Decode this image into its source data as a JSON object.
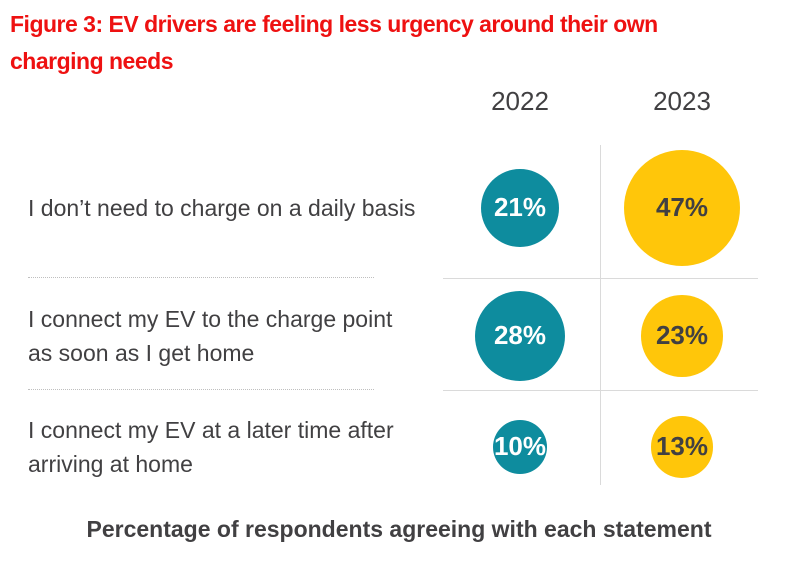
{
  "figure": {
    "title_line1": "Figure 3: EV drivers are feeling less urgency around their own",
    "title_line2": "charging needs",
    "title_full": "Figure 3: EV drivers are feeling less urgency around their own charging needs",
    "caption": "Percentage of respondents agreeing with each statement"
  },
  "columns": [
    {
      "id": "v2022",
      "label": "2022"
    },
    {
      "id": "v2023",
      "label": "2023"
    }
  ],
  "rows": [
    {
      "label_lines": [
        "I don’t need to charge on a daily basis"
      ],
      "v2022": 21,
      "v2022_label": "21%",
      "v2023": 47,
      "v2023_label": "47%"
    },
    {
      "label_lines": [
        "I connect my EV to the charge point",
        "as soon as I get home"
      ],
      "v2022": 28,
      "v2022_label": "28%",
      "v2023": 23,
      "v2023_label": "23%"
    },
    {
      "label_lines": [
        "I connect my EV at a later time after",
        "arriving at home"
      ],
      "v2022": 10,
      "v2022_label": "10%",
      "v2023": 13,
      "v2023_label": "13%"
    }
  ],
  "colors": {
    "title_red": "#EE1111",
    "bubble_2022_teal": "#0E8C9E",
    "bubble_2023_yellow": "#FFC60A",
    "text_dark": "#414042",
    "grid_gray": "#DADADA"
  },
  "chart_data": {
    "type": "scatter",
    "subtype": "proportional-bubble",
    "title": "Figure 3: EV drivers are feeling less urgency around their own charging needs",
    "caption": "Percentage of respondents agreeing with each statement",
    "units": "%",
    "categories": [
      "I don’t need to charge on a daily basis",
      "I connect my EV to the charge point as soon as I get home",
      "I connect my EV at a later time after arriving at home"
    ],
    "series": [
      {
        "name": "2022",
        "color": "#0E8C9E",
        "values": [
          21,
          28,
          10
        ]
      },
      {
        "name": "2023",
        "color": "#FFC60A",
        "values": [
          47,
          23,
          13
        ]
      }
    ],
    "encoding": "circle area proportional to percentage; value label centered inside each circle",
    "legend_position": "column headers above chart",
    "grid": "single vertical divider between year columns, horizontal separators between rows"
  }
}
